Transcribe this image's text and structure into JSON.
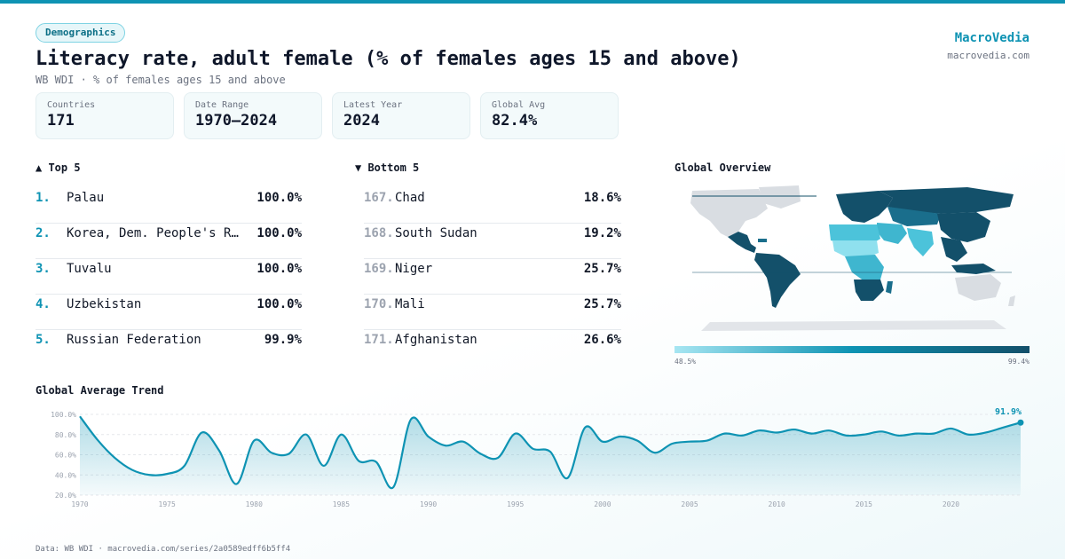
{
  "colors": {
    "accent": "#0e93b3",
    "dark": "#13506a",
    "light": "#a7e6f2",
    "muted": "#9ca3af"
  },
  "header": {
    "tag": "Demographics",
    "title": "Literacy rate, adult female (% of females ages 15 and above)",
    "subtitle": "WB WDI · % of females ages 15 and above",
    "brand": "MacroVedia",
    "brand_url": "macrovedia.com"
  },
  "stats": [
    {
      "label": "Countries",
      "value": "171"
    },
    {
      "label": "Date Range",
      "value": "1970–2024"
    },
    {
      "label": "Latest Year",
      "value": "2024"
    },
    {
      "label": "Global Avg",
      "value": "82.4%"
    }
  ],
  "top5": {
    "title": "▲ Top 5",
    "rows": [
      {
        "rank": "1.",
        "name": "Palau",
        "value": "100.0%"
      },
      {
        "rank": "2.",
        "name": "Korea, Dem. People's Rep.",
        "value": "100.0%"
      },
      {
        "rank": "3.",
        "name": "Tuvalu",
        "value": "100.0%"
      },
      {
        "rank": "4.",
        "name": "Uzbekistan",
        "value": "100.0%"
      },
      {
        "rank": "5.",
        "name": "Russian Federation",
        "value": "99.9%"
      }
    ]
  },
  "bottom5": {
    "title": "▼ Bottom 5",
    "rows": [
      {
        "rank": "167.",
        "name": "Chad",
        "value": "18.6%"
      },
      {
        "rank": "168.",
        "name": "South Sudan",
        "value": "19.2%"
      },
      {
        "rank": "169.",
        "name": "Niger",
        "value": "25.7%"
      },
      {
        "rank": "170.",
        "name": "Mali",
        "value": "25.7%"
      },
      {
        "rank": "171.",
        "name": "Afghanistan",
        "value": "26.6%"
      }
    ]
  },
  "map": {
    "title": "Global Overview",
    "legend_min": "48.5%",
    "legend_max": "99.4%"
  },
  "trend": {
    "title": "Global Average Trend",
    "last_label": "91.9%"
  },
  "footer": "Data: WB WDI · macrovedia.com/series/2a0589edff6b5ff4",
  "chart_data": {
    "type": "area",
    "title": "Global Average Trend",
    "x": [
      1970,
      1971,
      1972,
      1973,
      1974,
      1975,
      1976,
      1977,
      1978,
      1979,
      1980,
      1981,
      1982,
      1983,
      1984,
      1985,
      1986,
      1987,
      1988,
      1989,
      1990,
      1991,
      1992,
      1993,
      1994,
      1995,
      1996,
      1997,
      1998,
      1999,
      2000,
      2001,
      2002,
      2003,
      2004,
      2005,
      2006,
      2007,
      2008,
      2009,
      2010,
      2011,
      2012,
      2013,
      2014,
      2015,
      2016,
      2017,
      2018,
      2019,
      2020,
      2021,
      2022,
      2023,
      2024
    ],
    "values": [
      98,
      75,
      57,
      45,
      40,
      41,
      49,
      82,
      64,
      31,
      74,
      62,
      61,
      80,
      49,
      80,
      54,
      53,
      28,
      95,
      78,
      69,
      73,
      61,
      57,
      81,
      66,
      63,
      37,
      87,
      73,
      78,
      74,
      62,
      71,
      73,
      74,
      81,
      79,
      84,
      82,
      85,
      81,
      84,
      79,
      80,
      83,
      79,
      81,
      81,
      86,
      80,
      82,
      87,
      91.9
    ],
    "ylim": [
      20,
      100
    ],
    "yticks": [
      "20.0%",
      "40.0%",
      "60.0%",
      "80.0%",
      "100.0%"
    ],
    "xticks": [
      "1970",
      "1975",
      "1980",
      "1985",
      "1990",
      "1995",
      "2000",
      "2005",
      "2010",
      "2015",
      "2020"
    ],
    "grid": true
  }
}
